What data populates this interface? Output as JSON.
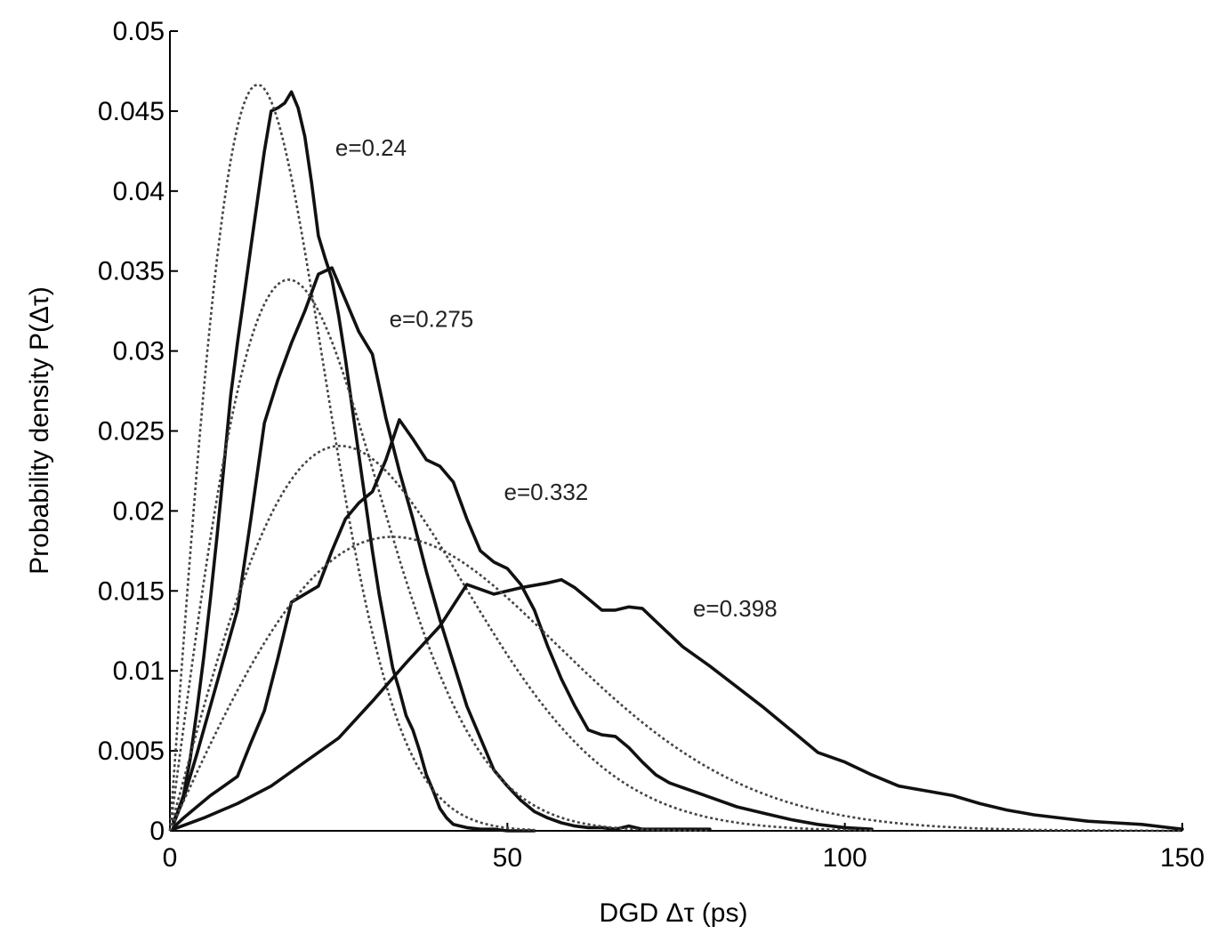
{
  "chart_data": {
    "type": "line",
    "title": "",
    "xlabel": "DGD Δτ (ps)",
    "ylabel": "Probability density P(Δτ)",
    "xlim": [
      0,
      150
    ],
    "ylim": [
      0,
      0.05
    ],
    "xticks": [
      0,
      50,
      100,
      150
    ],
    "xtick_labels": [
      "0",
      "50",
      "100",
      "150"
    ],
    "yticks": [
      0,
      0.005,
      0.01,
      0.015,
      0.02,
      0.025,
      0.03,
      0.035,
      0.04,
      0.045,
      0.05
    ],
    "ytick_labels": [
      "0",
      "0.005",
      "0.01",
      "0.015",
      "0.02",
      "0.025",
      "0.03",
      "0.035",
      "0.04",
      "0.045",
      "0.05"
    ],
    "grid": false,
    "legend": "none",
    "series": [
      {
        "name": "e=0.24",
        "kind": "measured",
        "x": [
          0.5,
          1,
          2,
          3,
          4,
          5,
          6,
          7,
          8,
          9,
          10,
          11,
          12,
          13,
          14,
          15,
          16,
          17,
          18,
          19,
          20,
          21,
          22,
          23,
          24,
          25,
          26,
          27,
          28,
          29,
          30,
          31,
          32,
          33,
          34,
          35,
          36,
          37,
          38,
          39,
          40,
          41,
          42,
          43,
          44,
          46,
          48,
          50,
          52,
          54
        ],
        "y": [
          0.0006,
          0.001,
          0.0022,
          0.0045,
          0.0075,
          0.0108,
          0.0145,
          0.0185,
          0.0228,
          0.0272,
          0.0305,
          0.0335,
          0.0365,
          0.0395,
          0.0425,
          0.045,
          0.0452,
          0.0455,
          0.0462,
          0.0452,
          0.0434,
          0.0405,
          0.0372,
          0.0358,
          0.0345,
          0.0322,
          0.0295,
          0.0265,
          0.0235,
          0.0205,
          0.0175,
          0.0148,
          0.0125,
          0.0102,
          0.0088,
          0.0072,
          0.0063,
          0.005,
          0.0035,
          0.0025,
          0.0014,
          0.0008,
          0.0004,
          0.0003,
          0.0002,
          0.0001,
          0.0001,
          0.0,
          0.0,
          0.0
        ]
      },
      {
        "name": "e=0.24 fit",
        "kind": "fit",
        "sigma": 13.0,
        "x_end": 54
      },
      {
        "name": "e=0.275",
        "kind": "measured",
        "x": [
          0.5,
          2,
          4,
          6,
          8,
          10,
          12,
          14,
          16,
          18,
          20,
          22,
          24,
          25,
          26,
          28,
          30,
          32,
          34,
          36,
          38,
          40,
          42,
          44,
          46,
          48,
          50,
          52,
          54,
          56,
          58,
          60,
          62,
          64,
          66,
          68,
          70,
          74,
          80
        ],
        "y": [
          0.0004,
          0.002,
          0.0048,
          0.0078,
          0.0108,
          0.0138,
          0.0195,
          0.0255,
          0.0282,
          0.0305,
          0.0325,
          0.0348,
          0.0352,
          0.0342,
          0.0332,
          0.0312,
          0.0298,
          0.0258,
          0.0225,
          0.0195,
          0.0162,
          0.0132,
          0.0105,
          0.0078,
          0.0058,
          0.0038,
          0.0028,
          0.0019,
          0.0012,
          0.0008,
          0.0005,
          0.0003,
          0.0002,
          0.0002,
          0.0001,
          0.0003,
          0.0001,
          0.0001,
          0.0001
        ]
      },
      {
        "name": "e=0.275 fit",
        "kind": "fit",
        "sigma": 17.6,
        "x_end": 80
      },
      {
        "name": "e=0.332",
        "kind": "measured",
        "x": [
          0.5,
          2,
          4,
          6,
          8,
          10,
          12,
          14,
          16,
          18,
          20,
          22,
          24,
          26,
          28,
          30,
          32,
          34,
          36,
          38,
          40,
          42,
          44,
          46,
          48,
          50,
          52,
          54,
          56,
          58,
          60,
          62,
          64,
          66,
          68,
          70,
          72,
          74,
          76,
          78,
          80,
          84,
          88,
          92,
          96,
          100,
          104
        ],
        "y": [
          0.0002,
          0.0008,
          0.0015,
          0.0022,
          0.0028,
          0.0034,
          0.0055,
          0.0075,
          0.0108,
          0.0143,
          0.0148,
          0.0153,
          0.0175,
          0.0195,
          0.0205,
          0.0212,
          0.0232,
          0.0257,
          0.0245,
          0.0232,
          0.0228,
          0.0218,
          0.0195,
          0.0175,
          0.0168,
          0.0164,
          0.0154,
          0.0138,
          0.0115,
          0.0095,
          0.0078,
          0.0063,
          0.006,
          0.0059,
          0.0052,
          0.0043,
          0.0035,
          0.003,
          0.0027,
          0.0024,
          0.0021,
          0.0015,
          0.0011,
          0.0007,
          0.0004,
          0.0002,
          0.0001
        ]
      },
      {
        "name": "e=0.332 fit",
        "kind": "fit",
        "sigma": 25.2,
        "x_end": 104
      },
      {
        "name": "e=0.398",
        "kind": "measured",
        "x": [
          0.5,
          5,
          10,
          15,
          20,
          25,
          30,
          35,
          40,
          44,
          48,
          52,
          56,
          58,
          60,
          62,
          64,
          66,
          68,
          70,
          72,
          74,
          76,
          80,
          84,
          88,
          92,
          96,
          100,
          104,
          108,
          112,
          116,
          120,
          124,
          128,
          132,
          136,
          140,
          144,
          148,
          150
        ],
        "y": [
          0.0001,
          0.0008,
          0.0017,
          0.0028,
          0.0043,
          0.0058,
          0.0081,
          0.0105,
          0.0128,
          0.0154,
          0.0148,
          0.0152,
          0.0155,
          0.0157,
          0.0152,
          0.0145,
          0.0138,
          0.0138,
          0.014,
          0.0139,
          0.0131,
          0.0123,
          0.0115,
          0.0103,
          0.009,
          0.0077,
          0.0063,
          0.0049,
          0.0043,
          0.0035,
          0.0028,
          0.0025,
          0.0022,
          0.0017,
          0.0013,
          0.001,
          0.0008,
          0.0006,
          0.0005,
          0.0004,
          0.0002,
          0.0001
        ]
      },
      {
        "name": "e=0.398 fit",
        "kind": "fit",
        "sigma": 33.0,
        "x_end": 150
      }
    ],
    "annotations": [
      {
        "text": "e=0.24",
        "x": 24.5,
        "y": 0.0422
      },
      {
        "text": "e=0.275",
        "x": 32.5,
        "y": 0.0315
      },
      {
        "text": "e=0.332",
        "x": 49.5,
        "y": 0.0207
      },
      {
        "text": "e=0.398",
        "x": 77.5,
        "y": 0.0134
      }
    ]
  }
}
